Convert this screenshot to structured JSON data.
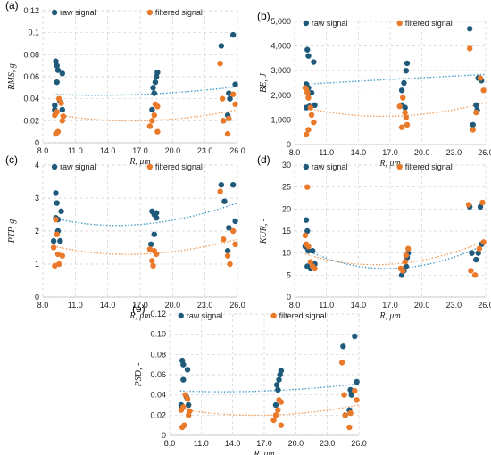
{
  "colors": {
    "raw": "#1f5a7a",
    "filtered": "#ea7a2a",
    "raw_trend": "#4a9ec7",
    "filtered_trend": "#f0a060",
    "grid": "#d0d0d0"
  },
  "chart_data": [
    {
      "type": "scatter",
      "panel_label": "(a)",
      "ylabel": "RMS, g",
      "xlabel": "R, μm",
      "xlim": [
        8.0,
        26.0
      ],
      "xticks": [
        "8.0",
        "11.0",
        "14.0",
        "17.0",
        "20.0",
        "23.0",
        "26.0"
      ],
      "ylim": [
        0,
        0.12
      ],
      "yticks": [
        "0",
        "0.02",
        "0.04",
        "0.06",
        "0.08",
        "0.1",
        "0.12"
      ],
      "grid": true,
      "legend": "top",
      "series": [
        {
          "name": "raw signal",
          "points": [
            [
              9.2,
              0.074
            ],
            [
              9.3,
              0.07
            ],
            [
              9.4,
              0.066
            ],
            [
              9.3,
              0.055
            ],
            [
              9.1,
              0.03
            ],
            [
              9.2,
              0.028
            ],
            [
              9.6,
              0.038
            ],
            [
              9.8,
              0.063
            ],
            [
              9.8,
              0.03
            ],
            [
              9.1,
              0.034
            ],
            [
              18.2,
              0.05
            ],
            [
              18.4,
              0.055
            ],
            [
              18.5,
              0.06
            ],
            [
              18.6,
              0.064
            ],
            [
              18.1,
              0.03
            ],
            [
              18.3,
              0.045
            ],
            [
              24.5,
              0.088
            ],
            [
              25.6,
              0.098
            ],
            [
              25.2,
              0.045
            ],
            [
              25.3,
              0.04
            ],
            [
              25.8,
              0.053
            ],
            [
              24.7,
              0.02
            ],
            [
              25.1,
              0.025
            ]
          ]
        },
        {
          "name": "filtered signal",
          "points": [
            [
              9.2,
              0.008
            ],
            [
              9.4,
              0.01
            ],
            [
              9.1,
              0.025
            ],
            [
              9.3,
              0.028
            ],
            [
              9.5,
              0.04
            ],
            [
              9.7,
              0.036
            ],
            [
              9.8,
              0.02
            ],
            [
              9.9,
              0.024
            ],
            [
              17.9,
              0.015
            ],
            [
              18.1,
              0.02
            ],
            [
              18.3,
              0.025
            ],
            [
              18.4,
              0.035
            ],
            [
              18.6,
              0.033
            ],
            [
              18.6,
              0.01
            ],
            [
              24.4,
              0.072
            ],
            [
              24.6,
              0.04
            ],
            [
              24.7,
              0.02
            ],
            [
              25.1,
              0.008
            ],
            [
              25.2,
              0.022
            ],
            [
              25.6,
              0.044
            ],
            [
              25.8,
              0.035
            ]
          ]
        }
      ],
      "trends": [
        {
          "series": "raw signal",
          "x": [
            9.0,
            17.0,
            26.0
          ],
          "y": [
            0.044,
            0.044,
            0.051
          ]
        },
        {
          "series": "filtered signal",
          "x": [
            9.0,
            17.0,
            26.0
          ],
          "y": [
            0.026,
            0.02,
            0.03
          ]
        }
      ]
    },
    {
      "type": "scatter",
      "panel_label": "(b)",
      "ylabel": "BE, J",
      "xlabel": "R, μm",
      "xlim": [
        8.0,
        26.0
      ],
      "xticks": [
        "8.0",
        "11.0",
        "14.0",
        "17.0",
        "20.0",
        "23.0",
        "26.0"
      ],
      "ylim": [
        0,
        5000
      ],
      "yticks": [
        "0",
        "1,000",
        "2,000",
        "3,000",
        "4,000",
        "5,000"
      ],
      "grid": true,
      "legend": "top",
      "series": [
        {
          "name": "raw signal",
          "points": [
            [
              9.2,
              3850
            ],
            [
              9.3,
              3600
            ],
            [
              9.8,
              3350
            ],
            [
              9.1,
              2450
            ],
            [
              9.3,
              2300
            ],
            [
              9.6,
              2100
            ],
            [
              9.1,
              1500
            ],
            [
              9.4,
              1550
            ],
            [
              9.9,
              1600
            ],
            [
              18.1,
              2200
            ],
            [
              18.3,
              2500
            ],
            [
              18.5,
              3000
            ],
            [
              18.6,
              3300
            ],
            [
              18.1,
              1600
            ],
            [
              18.4,
              1500
            ],
            [
              24.5,
              4700
            ],
            [
              25.3,
              2700
            ],
            [
              25.6,
              2600
            ],
            [
              25.1,
              1600
            ],
            [
              25.2,
              1400
            ],
            [
              24.8,
              800
            ]
          ]
        },
        {
          "name": "filtered signal",
          "points": [
            [
              9.0,
              2300
            ],
            [
              9.1,
              2250
            ],
            [
              9.2,
              2100
            ],
            [
              9.3,
              1900
            ],
            [
              9.5,
              1500
            ],
            [
              9.6,
              1200
            ],
            [
              9.8,
              900
            ],
            [
              9.1,
              400
            ],
            [
              9.3,
              600
            ],
            [
              17.9,
              1550
            ],
            [
              18.2,
              1900
            ],
            [
              18.4,
              1300
            ],
            [
              18.5,
              1100
            ],
            [
              18.1,
              700
            ],
            [
              18.6,
              800
            ],
            [
              24.5,
              3900
            ],
            [
              25.5,
              2700
            ],
            [
              25.8,
              2200
            ],
            [
              25.1,
              1300
            ],
            [
              24.8,
              600
            ]
          ]
        }
      ],
      "trends": [
        {
          "series": "raw signal",
          "x": [
            9.0,
            17.0,
            26.0
          ],
          "y": [
            2450,
            2650,
            2850
          ]
        },
        {
          "series": "filtered signal",
          "x": [
            9.0,
            17.0,
            26.0
          ],
          "y": [
            1500,
            1150,
            1700
          ]
        }
      ]
    },
    {
      "type": "scatter",
      "panel_label": "(c)",
      "ylabel": "PTP, g",
      "xlabel": "R, μm",
      "xlim": [
        8.0,
        26.0
      ],
      "xticks": [
        "8.0",
        "11.0",
        "14.0",
        "17.0",
        "20.0",
        "23.0",
        "26.0"
      ],
      "ylim": [
        0,
        4
      ],
      "yticks": [
        "0",
        "1",
        "2",
        "3",
        "4"
      ],
      "grid": true,
      "legend": "top",
      "series": [
        {
          "name": "raw signal",
          "points": [
            [
              9.2,
              3.15
            ],
            [
              9.3,
              2.85
            ],
            [
              9.2,
              2.4
            ],
            [
              9.4,
              2.35
            ],
            [
              9.7,
              2.6
            ],
            [
              9.0,
              1.7
            ],
            [
              9.4,
              2.0
            ],
            [
              9.6,
              1.7
            ],
            [
              18.1,
              2.6
            ],
            [
              18.3,
              2.5
            ],
            [
              18.5,
              2.55
            ],
            [
              18.5,
              2.4
            ],
            [
              18.0,
              1.6
            ],
            [
              18.3,
              1.9
            ],
            [
              24.5,
              3.4
            ],
            [
              25.6,
              3.4
            ],
            [
              24.8,
              2.9
            ],
            [
              25.2,
              2.1
            ],
            [
              25.8,
              2.3
            ],
            [
              25.1,
              1.4
            ]
          ]
        },
        {
          "name": "filtered signal",
          "points": [
            [
              9.2,
              2.35
            ],
            [
              9.3,
              1.9
            ],
            [
              9.0,
              1.5
            ],
            [
              9.4,
              1.3
            ],
            [
              9.8,
              1.25
            ],
            [
              9.1,
              0.95
            ],
            [
              9.5,
              1.0
            ],
            [
              17.9,
              1.45
            ],
            [
              18.1,
              1.1
            ],
            [
              18.3,
              1.4
            ],
            [
              18.5,
              1.3
            ],
            [
              18.2,
              0.95
            ],
            [
              24.4,
              3.2
            ],
            [
              24.7,
              1.75
            ],
            [
              25.1,
              1.25
            ],
            [
              25.3,
              1.0
            ],
            [
              25.6,
              2.0
            ],
            [
              25.8,
              1.6
            ]
          ]
        }
      ],
      "trends": [
        {
          "series": "raw signal",
          "x": [
            9.0,
            16.5,
            26.0
          ],
          "y": [
            2.4,
            2.2,
            2.85
          ]
        },
        {
          "series": "filtered signal",
          "x": [
            9.0,
            16.5,
            26.0
          ],
          "y": [
            1.55,
            1.3,
            1.75
          ]
        }
      ]
    },
    {
      "type": "scatter",
      "panel_label": "(d)",
      "ylabel": "KUR, -",
      "xlabel": "R, μm",
      "xlim": [
        8.0,
        26.0
      ],
      "xticks": [
        "8.0",
        "11.0",
        "14.0",
        "17.0",
        "20.0",
        "23.0",
        "26.0"
      ],
      "ylim": [
        0,
        30
      ],
      "yticks": [
        "0",
        "5",
        "10",
        "15",
        "20",
        "25",
        "30"
      ],
      "grid": true,
      "legend": "top",
      "series": [
        {
          "name": "raw signal",
          "points": [
            [
              9.1,
              17.5
            ],
            [
              9.2,
              15.0
            ],
            [
              9.0,
              11.5
            ],
            [
              9.3,
              10.5
            ],
            [
              9.7,
              10.5
            ],
            [
              9.2,
              7.0
            ],
            [
              9.5,
              6.5
            ],
            [
              9.9,
              7.5
            ],
            [
              18.1,
              5.0
            ],
            [
              18.3,
              6.0
            ],
            [
              18.5,
              7.0
            ],
            [
              18.6,
              9.0
            ],
            [
              18.7,
              10.0
            ],
            [
              24.5,
              20.5
            ],
            [
              25.5,
              20.5
            ],
            [
              24.7,
              10.0
            ],
            [
              25.1,
              8.5
            ],
            [
              25.3,
              10.0
            ],
            [
              25.6,
              12.0
            ]
          ]
        },
        {
          "name": "filtered signal",
          "points": [
            [
              9.2,
              25.0
            ],
            [
              9.0,
              14.0
            ],
            [
              9.1,
              12.0
            ],
            [
              9.3,
              11.5
            ],
            [
              9.5,
              8.0
            ],
            [
              9.7,
              7.0
            ],
            [
              9.9,
              6.5
            ],
            [
              18.0,
              6.5
            ],
            [
              18.2,
              6.0
            ],
            [
              18.4,
              8.0
            ],
            [
              18.5,
              9.5
            ],
            [
              18.7,
              11.0
            ],
            [
              24.4,
              21.0
            ],
            [
              25.7,
              21.5
            ],
            [
              24.6,
              6.0
            ],
            [
              25.0,
              5.0
            ],
            [
              25.4,
              11.0
            ],
            [
              25.8,
              12.5
            ]
          ]
        }
      ],
      "trends": [
        {
          "series": "raw signal",
          "x": [
            9.0,
            17.0,
            26.0
          ],
          "y": [
            10.8,
            6.5,
            12.0
          ]
        },
        {
          "series": "filtered signal",
          "x": [
            9.0,
            17.0,
            26.0
          ],
          "y": [
            9.8,
            7.5,
            12.8
          ]
        }
      ]
    },
    {
      "type": "scatter",
      "panel_label": "(e)",
      "ylabel": "PSD, -",
      "xlabel": "R, μm",
      "xlim": [
        8.0,
        26.0
      ],
      "xticks": [
        "8.0",
        "11.0",
        "14.0",
        "17.0",
        "20.0",
        "23.0",
        "26.0"
      ],
      "ylim": [
        0,
        0.12
      ],
      "yticks": [
        "0",
        "0.02",
        "0.04",
        "0.06",
        "0.08",
        "0.10",
        "0.12"
      ],
      "grid": true,
      "legend": "top",
      "series": [
        {
          "name": "raw signal",
          "points": [
            [
              9.2,
              0.074
            ],
            [
              9.3,
              0.07
            ],
            [
              9.7,
              0.065
            ],
            [
              9.3,
              0.055
            ],
            [
              9.1,
              0.03
            ],
            [
              9.2,
              0.028
            ],
            [
              9.6,
              0.038
            ],
            [
              9.8,
              0.03
            ],
            [
              18.2,
              0.05
            ],
            [
              18.4,
              0.055
            ],
            [
              18.5,
              0.06
            ],
            [
              18.6,
              0.064
            ],
            [
              18.1,
              0.03
            ],
            [
              18.3,
              0.045
            ],
            [
              24.5,
              0.088
            ],
            [
              25.6,
              0.098
            ],
            [
              25.2,
              0.045
            ],
            [
              25.3,
              0.04
            ],
            [
              25.8,
              0.053
            ],
            [
              24.7,
              0.02
            ],
            [
              25.1,
              0.025
            ]
          ]
        },
        {
          "name": "filtered signal",
          "points": [
            [
              9.2,
              0.008
            ],
            [
              9.4,
              0.01
            ],
            [
              9.1,
              0.025
            ],
            [
              9.3,
              0.028
            ],
            [
              9.5,
              0.04
            ],
            [
              9.7,
              0.036
            ],
            [
              9.8,
              0.02
            ],
            [
              9.9,
              0.024
            ],
            [
              17.9,
              0.015
            ],
            [
              18.1,
              0.02
            ],
            [
              18.3,
              0.025
            ],
            [
              18.4,
              0.035
            ],
            [
              18.6,
              0.033
            ],
            [
              18.6,
              0.01
            ],
            [
              24.4,
              0.072
            ],
            [
              24.6,
              0.04
            ],
            [
              24.7,
              0.02
            ],
            [
              25.1,
              0.008
            ],
            [
              25.2,
              0.022
            ],
            [
              25.6,
              0.044
            ],
            [
              25.8,
              0.035
            ]
          ]
        }
      ],
      "trends": [
        {
          "series": "raw signal",
          "x": [
            9.0,
            17.0,
            26.0
          ],
          "y": [
            0.044,
            0.044,
            0.051
          ]
        },
        {
          "series": "filtered signal",
          "x": [
            9.0,
            17.0,
            26.0
          ],
          "y": [
            0.026,
            0.02,
            0.03
          ]
        }
      ]
    }
  ]
}
